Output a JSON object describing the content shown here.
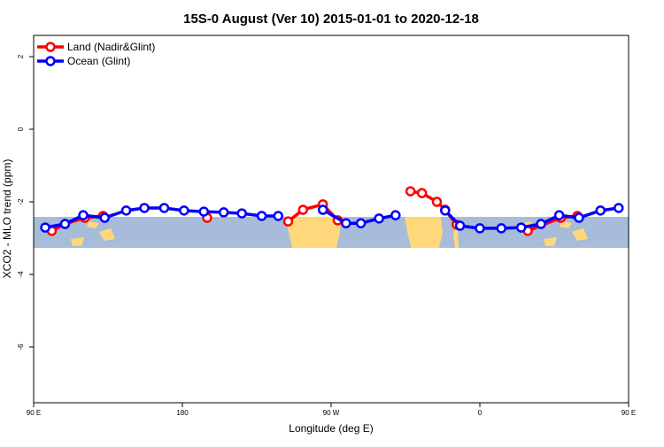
{
  "chart_data": {
    "type": "line",
    "title": "15S-0 August (Ver 10)   2015-01-01 to 2020-12-18",
    "xlabel": "Longitude (deg E)",
    "ylabel": "XCO2 - MLO trend (ppm)",
    "xlim": [
      90,
      450
    ],
    "ylim": [
      -7.5,
      2.6
    ],
    "x_ticks": [
      {
        "value": 90,
        "label": "90 E"
      },
      {
        "value": 180,
        "label": "180"
      },
      {
        "value": 270,
        "label": "90 W"
      },
      {
        "value": 360,
        "label": "0"
      },
      {
        "value": 450,
        "label": "90 E"
      },
      {
        "value": 540,
        "label": "180"
      }
    ],
    "y_ticks": [
      2,
      0,
      -2,
      -4,
      -6
    ],
    "grid": false,
    "legend_position": "top-left",
    "background": "land/ocean map band for latitude 15S-0",
    "series": [
      {
        "name": "Land (Nadir&Glint)",
        "color": "#ff0000",
        "points": [
          [
            101,
            -2.8
          ],
          [
            109,
            -2.61
          ],
          [
            121,
            -2.44
          ],
          [
            132,
            -2.39
          ],
          null,
          [
            -165,
            -2.44
          ],
          null,
          [
            -116,
            -2.54
          ],
          [
            -107,
            -2.22
          ],
          [
            -95,
            -2.07
          ],
          [
            -86,
            -2.51
          ],
          null,
          [
            -42,
            -1.71
          ],
          [
            -35,
            -1.76
          ],
          [
            -26,
            -2.0
          ],
          [
            -21,
            -2.22
          ],
          [
            -14,
            -2.63
          ],
          null,
          [
            29,
            -2.8
          ],
          [
            49,
            -2.44
          ],
          [
            59,
            -2.39
          ]
        ]
      },
      {
        "name": "Ocean (Glint)",
        "color": "#0000ff",
        "points": [
          [
            97,
            -2.71
          ],
          [
            109,
            -2.61
          ],
          [
            120,
            -2.37
          ],
          [
            133,
            -2.44
          ],
          [
            146,
            -2.24
          ],
          [
            157,
            -2.17
          ],
          [
            169,
            -2.17
          ],
          [
            -179,
            -2.24
          ],
          [
            -167,
            -2.27
          ],
          [
            -155,
            -2.29
          ],
          [
            -144,
            -2.32
          ],
          [
            -132,
            -2.39
          ],
          [
            -122,
            -2.39
          ],
          null,
          [
            -95,
            -2.22
          ],
          [
            -81,
            -2.59
          ],
          [
            -72,
            -2.59
          ],
          [
            -61,
            -2.46
          ],
          [
            -51,
            -2.37
          ],
          null,
          [
            -21,
            -2.24
          ],
          [
            -12,
            -2.66
          ],
          [
            0,
            -2.73
          ],
          [
            13,
            -2.73
          ],
          [
            25,
            -2.71
          ],
          [
            37,
            -2.61
          ],
          [
            48,
            -2.37
          ],
          [
            60,
            -2.44
          ],
          [
            73,
            -2.24
          ],
          [
            84,
            -2.17
          ]
        ]
      }
    ]
  },
  "colors": {
    "ocean": "#a7bcd9",
    "land": "#fed87a"
  }
}
